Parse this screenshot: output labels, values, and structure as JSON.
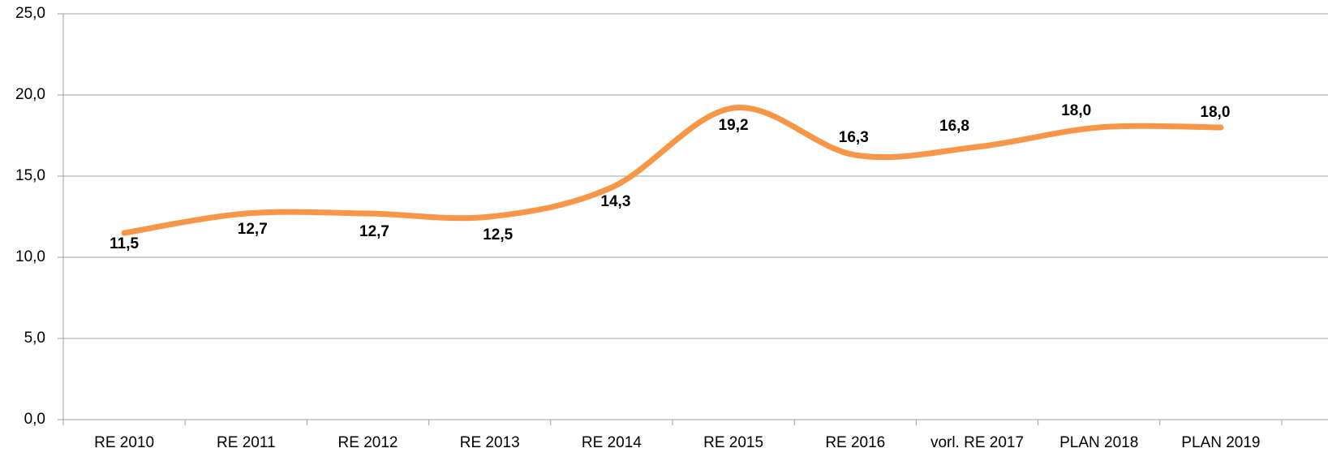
{
  "chart_data": {
    "type": "line",
    "categories": [
      "RE 2010",
      "RE 2011",
      "RE 2012",
      "RE 2013",
      "RE 2014",
      "RE 2015",
      "RE 2016",
      "vorl. RE 2017",
      "PLAN 2018",
      "PLAN 2019"
    ],
    "series": [
      {
        "color": "#f79646",
        "values": [
          11.5,
          12.7,
          12.7,
          12.5,
          14.3,
          19.2,
          16.3,
          16.8,
          18.0,
          18.0
        ],
        "value_labels": [
          "11,5",
          "12,7",
          "12,7",
          "12,5",
          "14,3",
          "19,2",
          "16,3",
          "16,8",
          "18,0",
          "18,0"
        ]
      }
    ],
    "ylim": [
      0,
      25
    ],
    "yticks": [
      {
        "value": 0,
        "label": "0,0"
      },
      {
        "value": 5,
        "label": "5,0"
      },
      {
        "value": 10,
        "label": "10,0"
      },
      {
        "value": 15,
        "label": "15,0"
      },
      {
        "value": 20,
        "label": "20,0"
      },
      {
        "value": 25,
        "label": "25,0"
      }
    ],
    "grid": true,
    "smooth": true
  }
}
